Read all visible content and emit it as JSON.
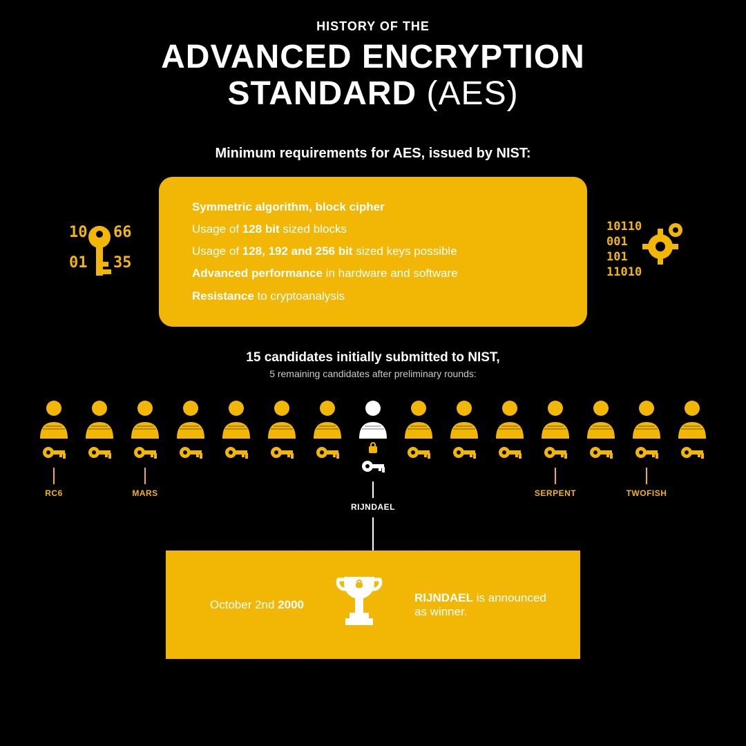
{
  "colors": {
    "background": "#000000",
    "accent": "#f2b705",
    "text": "#ffffff",
    "subtext": "#cccccc"
  },
  "header": {
    "eyebrow": "HISTORY OF THE",
    "title_line1": "ADVANCED ENCRYPTION",
    "title_line2_bold": "STANDARD",
    "title_line2_thin": "(AES)"
  },
  "requirements": {
    "heading": "Minimum requirements for AES, issued by NIST:",
    "lines": [
      {
        "pre": "",
        "bold": "Symmetric algorithm, block cipher",
        "post": ""
      },
      {
        "pre": "Usage of ",
        "bold": "128 bit",
        "post": " sized blocks"
      },
      {
        "pre": "Usage of ",
        "bold": "128, 192 and 256 bit",
        "post": " sized keys possible"
      },
      {
        "pre": "",
        "bold": "Advanced performance",
        "post": " in hardware and software"
      },
      {
        "pre": "",
        "bold": "Resistance",
        "post": " to cryptoanalysis"
      }
    ],
    "key_digits": [
      "10",
      "66",
      "01",
      "35"
    ],
    "gear_digits": [
      "10110",
      "001",
      "101",
      "11010"
    ]
  },
  "finalists": {
    "heading": "15 candidates initially submitted to NIST,",
    "sub": "5 remaining candidates after preliminary rounds:",
    "candidates": [
      {
        "finalist": true,
        "winner": false,
        "label": "RC6"
      },
      {
        "finalist": false,
        "winner": false,
        "label": ""
      },
      {
        "finalist": true,
        "winner": false,
        "label": "MARS"
      },
      {
        "finalist": false,
        "winner": false,
        "label": ""
      },
      {
        "finalist": false,
        "winner": false,
        "label": ""
      },
      {
        "finalist": false,
        "winner": false,
        "label": ""
      },
      {
        "finalist": false,
        "winner": false,
        "label": ""
      },
      {
        "finalist": false,
        "winner": true,
        "label": "RIJNDAEL"
      },
      {
        "finalist": false,
        "winner": false,
        "label": ""
      },
      {
        "finalist": false,
        "winner": false,
        "label": ""
      },
      {
        "finalist": false,
        "winner": false,
        "label": ""
      },
      {
        "finalist": true,
        "winner": false,
        "label": "SERPENT"
      },
      {
        "finalist": false,
        "winner": false,
        "label": ""
      },
      {
        "finalist": true,
        "winner": false,
        "label": "TWOFISH"
      },
      {
        "finalist": false,
        "winner": false,
        "label": ""
      }
    ]
  },
  "winner": {
    "date_pre": "October 2nd ",
    "date_bold": "2000",
    "announce_bold": "RIJNDAEL",
    "announce_post": " is announced as winner."
  }
}
